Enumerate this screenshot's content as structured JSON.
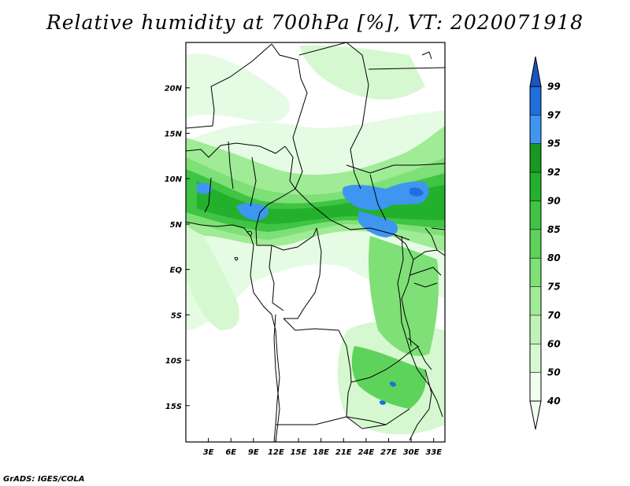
{
  "title": "Relative humidity at 700hPa [%], VT: 2020071918",
  "credit": "GrADS: IGES/COLA",
  "map": {
    "lat_range": [
      -19,
      25
    ],
    "lon_range": [
      0,
      34.5
    ],
    "lat_ticks": [
      "20N",
      "15N",
      "10N",
      "5N",
      "EQ",
      "5S",
      "10S",
      "15S"
    ],
    "lat_values": [
      20,
      15,
      10,
      5,
      0,
      -5,
      -10,
      -15
    ],
    "lon_ticks": [
      "3E",
      "6E",
      "9E",
      "12E",
      "15E",
      "18E",
      "21E",
      "24E",
      "27E",
      "30E",
      "33E"
    ],
    "lon_values": [
      3,
      6,
      9,
      12,
      15,
      18,
      21,
      24,
      27,
      30,
      33
    ]
  },
  "colorbar": {
    "levels": [
      "40",
      "50",
      "60",
      "70",
      "75",
      "80",
      "85",
      "90",
      "92",
      "95",
      "97",
      "99"
    ],
    "colors": [
      "#f0fff0",
      "#d6f8d0",
      "#bff2b6",
      "#a0eb96",
      "#7ee076",
      "#5ed35c",
      "#3fc444",
      "#23b02d",
      "#169a1f",
      "#3e96f0",
      "#1f6fdc",
      "#1a55c0"
    ]
  }
}
